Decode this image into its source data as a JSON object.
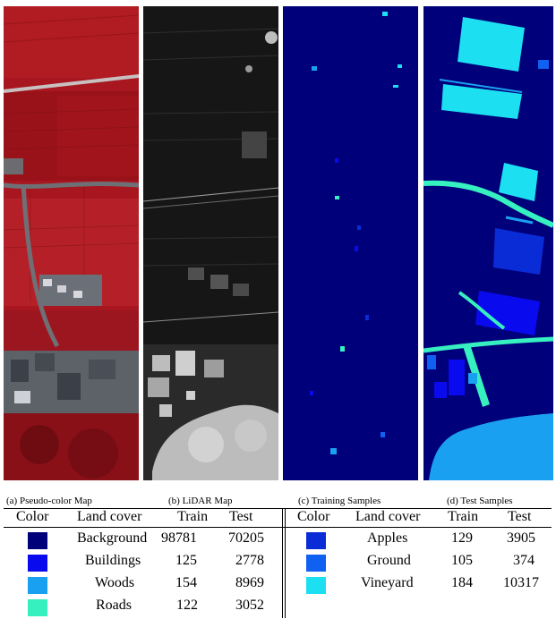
{
  "captions": {
    "a": "(a) Pseudo-color Map",
    "b": "(b) LiDAR Map",
    "c": "(c) Training Samples",
    "d": "(d) Test Samples"
  },
  "table": {
    "headers": [
      "Color",
      "Land cover",
      "Train",
      "Test"
    ],
    "left_rows": [
      {
        "color": "#00007a",
        "land_cover": "Background",
        "train": "98781",
        "test": "70205"
      },
      {
        "color": "#0a0aee",
        "land_cover": "Buildings",
        "train": "125",
        "test": "2778"
      },
      {
        "color": "#1aa0f0",
        "land_cover": "Woods",
        "train": "154",
        "test": "8969"
      },
      {
        "color": "#36f0c0",
        "land_cover": "Roads",
        "train": "122",
        "test": "3052"
      }
    ],
    "right_rows": [
      {
        "color": "#0a2cd6",
        "land_cover": "Apples",
        "train": "129",
        "test": "3905"
      },
      {
        "color": "#1060f2",
        "land_cover": "Ground",
        "train": "105",
        "test": "374"
      },
      {
        "color": "#1ce0f2",
        "land_cover": "Vineyard",
        "train": "184",
        "test": "10317"
      }
    ]
  }
}
